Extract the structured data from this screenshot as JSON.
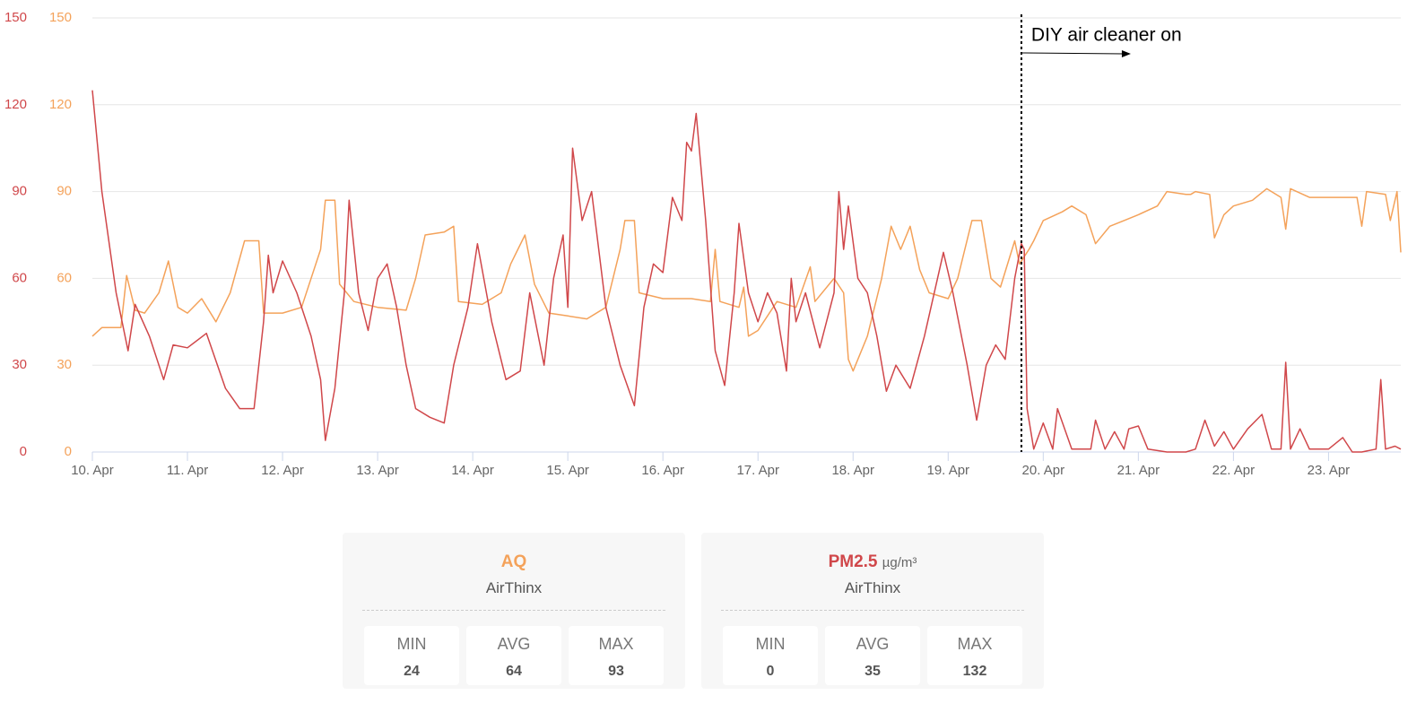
{
  "chart_data": {
    "type": "line",
    "xlim": [
      10,
      23.76
    ],
    "xticks": [
      {
        "value": 10,
        "label": "10. Apr"
      },
      {
        "value": 11,
        "label": "11. Apr"
      },
      {
        "value": 12,
        "label": "12. Apr"
      },
      {
        "value": 13,
        "label": "13. Apr"
      },
      {
        "value": 14,
        "label": "14. Apr"
      },
      {
        "value": 15,
        "label": "15. Apr"
      },
      {
        "value": 16,
        "label": "16. Apr"
      },
      {
        "value": 17,
        "label": "17. Apr"
      },
      {
        "value": 18,
        "label": "18. Apr"
      },
      {
        "value": 19,
        "label": "19. Apr"
      },
      {
        "value": 20,
        "label": "20. Apr"
      },
      {
        "value": 21,
        "label": "21. Apr"
      },
      {
        "value": 22,
        "label": "22. Apr"
      },
      {
        "value": 23,
        "label": "23. Apr"
      }
    ],
    "ylim": [
      0,
      150
    ],
    "yticks": [
      0,
      30,
      60,
      90,
      120,
      150
    ],
    "y2lim": [
      0,
      150
    ],
    "y2ticks": [
      0,
      30,
      60,
      90,
      120,
      150
    ],
    "grid": true,
    "annotation": {
      "text": "DIY air cleaner on",
      "x": 19.77
    },
    "stat_labels": [
      "MIN",
      "AVG",
      "MAX"
    ],
    "series": [
      {
        "name": "PM2.5",
        "color": "#d0474a",
        "axis": "y",
        "stats": {
          "unit": "µg/m³",
          "source": "AirThinx",
          "values": [
            0,
            35,
            132
          ]
        },
        "x": [
          10.0,
          10.1,
          10.25,
          10.375,
          10.45,
          10.6,
          10.75,
          10.85,
          11.0,
          11.2,
          11.4,
          11.55,
          11.7,
          11.8,
          11.85,
          11.9,
          12.0,
          12.15,
          12.3,
          12.4,
          12.45,
          12.55,
          12.65,
          12.7,
          12.8,
          12.9,
          13.0,
          13.1,
          13.2,
          13.3,
          13.4,
          13.55,
          13.7,
          13.8,
          13.95,
          14.05,
          14.2,
          14.35,
          14.5,
          14.6,
          14.75,
          14.85,
          14.95,
          15.0,
          15.05,
          15.15,
          15.25,
          15.4,
          15.55,
          15.7,
          15.8,
          15.9,
          16.0,
          16.1,
          16.2,
          16.25,
          16.3,
          16.35,
          16.45,
          16.55,
          16.65,
          16.75,
          16.8,
          16.9,
          17.0,
          17.1,
          17.2,
          17.3,
          17.35,
          17.4,
          17.5,
          17.65,
          17.8,
          17.85,
          17.9,
          17.95,
          18.05,
          18.15,
          18.25,
          18.35,
          18.45,
          18.6,
          18.75,
          18.95,
          19.05,
          19.2,
          19.3,
          19.4,
          19.5,
          19.6,
          19.7,
          19.77,
          19.8,
          19.83,
          19.9,
          20.0,
          20.1,
          20.15,
          20.3,
          20.5,
          20.55,
          20.65,
          20.75,
          20.85,
          20.9,
          21.0,
          21.1,
          21.3,
          21.5,
          21.6,
          21.7,
          21.8,
          21.9,
          22.0,
          22.15,
          22.3,
          22.4,
          22.5,
          22.55,
          22.6,
          22.7,
          22.8,
          23.0,
          23.15,
          23.25,
          23.35,
          23.5,
          23.55,
          23.6,
          23.7,
          23.76
        ],
        "values": [
          125,
          90,
          55,
          35,
          51,
          40,
          25,
          37,
          36,
          41,
          22,
          15,
          15,
          45,
          68,
          55,
          66,
          55,
          40,
          25,
          4,
          22,
          55,
          87,
          55,
          42,
          60,
          65,
          50,
          30,
          15,
          12,
          10,
          30,
          50,
          72,
          45,
          25,
          28,
          55,
          30,
          60,
          75,
          50,
          105,
          80,
          90,
          50,
          30,
          16,
          50,
          65,
          62,
          88,
          80,
          107,
          104,
          117,
          80,
          35,
          23,
          55,
          79,
          55,
          45,
          55,
          48,
          28,
          60,
          45,
          55,
          36,
          55,
          90,
          70,
          85,
          60,
          55,
          40,
          21,
          30,
          22,
          40,
          69,
          55,
          30,
          11,
          30,
          37,
          32,
          60,
          72,
          70,
          15,
          1,
          10,
          1,
          15,
          1,
          1,
          11,
          1,
          7,
          1,
          8,
          9,
          1,
          0,
          0,
          1,
          11,
          2,
          7,
          1,
          8,
          13,
          1,
          1,
          31,
          1,
          8,
          1,
          1,
          5,
          0,
          0,
          1,
          25,
          1,
          2,
          1
        ]
      },
      {
        "name": "AQ",
        "color": "#f4a25a",
        "axis": "y2",
        "stats": {
          "source": "AirThinx",
          "values": [
            24,
            64,
            93
          ]
        },
        "x": [
          10.0,
          10.1,
          10.3,
          10.36,
          10.45,
          10.55,
          10.7,
          10.8,
          10.9,
          11.0,
          11.15,
          11.3,
          11.45,
          11.6,
          11.75,
          11.8,
          12.0,
          12.2,
          12.4,
          12.45,
          12.55,
          12.6,
          12.75,
          13.0,
          13.3,
          13.4,
          13.5,
          13.7,
          13.8,
          13.85,
          14.1,
          14.3,
          14.4,
          14.55,
          14.65,
          14.8,
          15.0,
          15.2,
          15.4,
          15.55,
          15.6,
          15.7,
          15.75,
          16.0,
          16.3,
          16.5,
          16.55,
          16.6,
          16.8,
          16.85,
          16.9,
          17.0,
          17.2,
          17.4,
          17.55,
          17.6,
          17.8,
          17.9,
          17.95,
          18.0,
          18.15,
          18.3,
          18.4,
          18.5,
          18.6,
          18.7,
          18.8,
          19.0,
          19.1,
          19.25,
          19.35,
          19.45,
          19.55,
          19.7,
          19.75,
          19.85,
          19.9,
          20.0,
          20.2,
          20.3,
          20.45,
          20.55,
          20.7,
          20.85,
          21.0,
          21.2,
          21.3,
          21.5,
          21.55,
          21.6,
          21.75,
          21.8,
          21.9,
          22.0,
          22.2,
          22.35,
          22.5,
          22.55,
          22.6,
          22.8,
          23.0,
          23.3,
          23.35,
          23.4,
          23.6,
          23.65,
          23.72,
          23.76
        ],
        "values": [
          40,
          43,
          43,
          61,
          49,
          48,
          55,
          66,
          50,
          48,
          53,
          45,
          55,
          73,
          73,
          48,
          48,
          50,
          70,
          87,
          87,
          58,
          52,
          50,
          49,
          60,
          75,
          76,
          78,
          52,
          51,
          55,
          65,
          75,
          58,
          48,
          47,
          46,
          50,
          70,
          80,
          80,
          55,
          53,
          53,
          52,
          70,
          52,
          50,
          57,
          40,
          42,
          52,
          50,
          64,
          52,
          60,
          55,
          32,
          28,
          40,
          60,
          78,
          70,
          78,
          63,
          55,
          53,
          60,
          80,
          80,
          60,
          57,
          73,
          65,
          70,
          73,
          80,
          83,
          85,
          82,
          72,
          78,
          80,
          82,
          85,
          90,
          89,
          89,
          90,
          89,
          74,
          82,
          85,
          87,
          91,
          88,
          77,
          91,
          88,
          88,
          88,
          78,
          90,
          89,
          80,
          90,
          69
        ]
      }
    ]
  }
}
